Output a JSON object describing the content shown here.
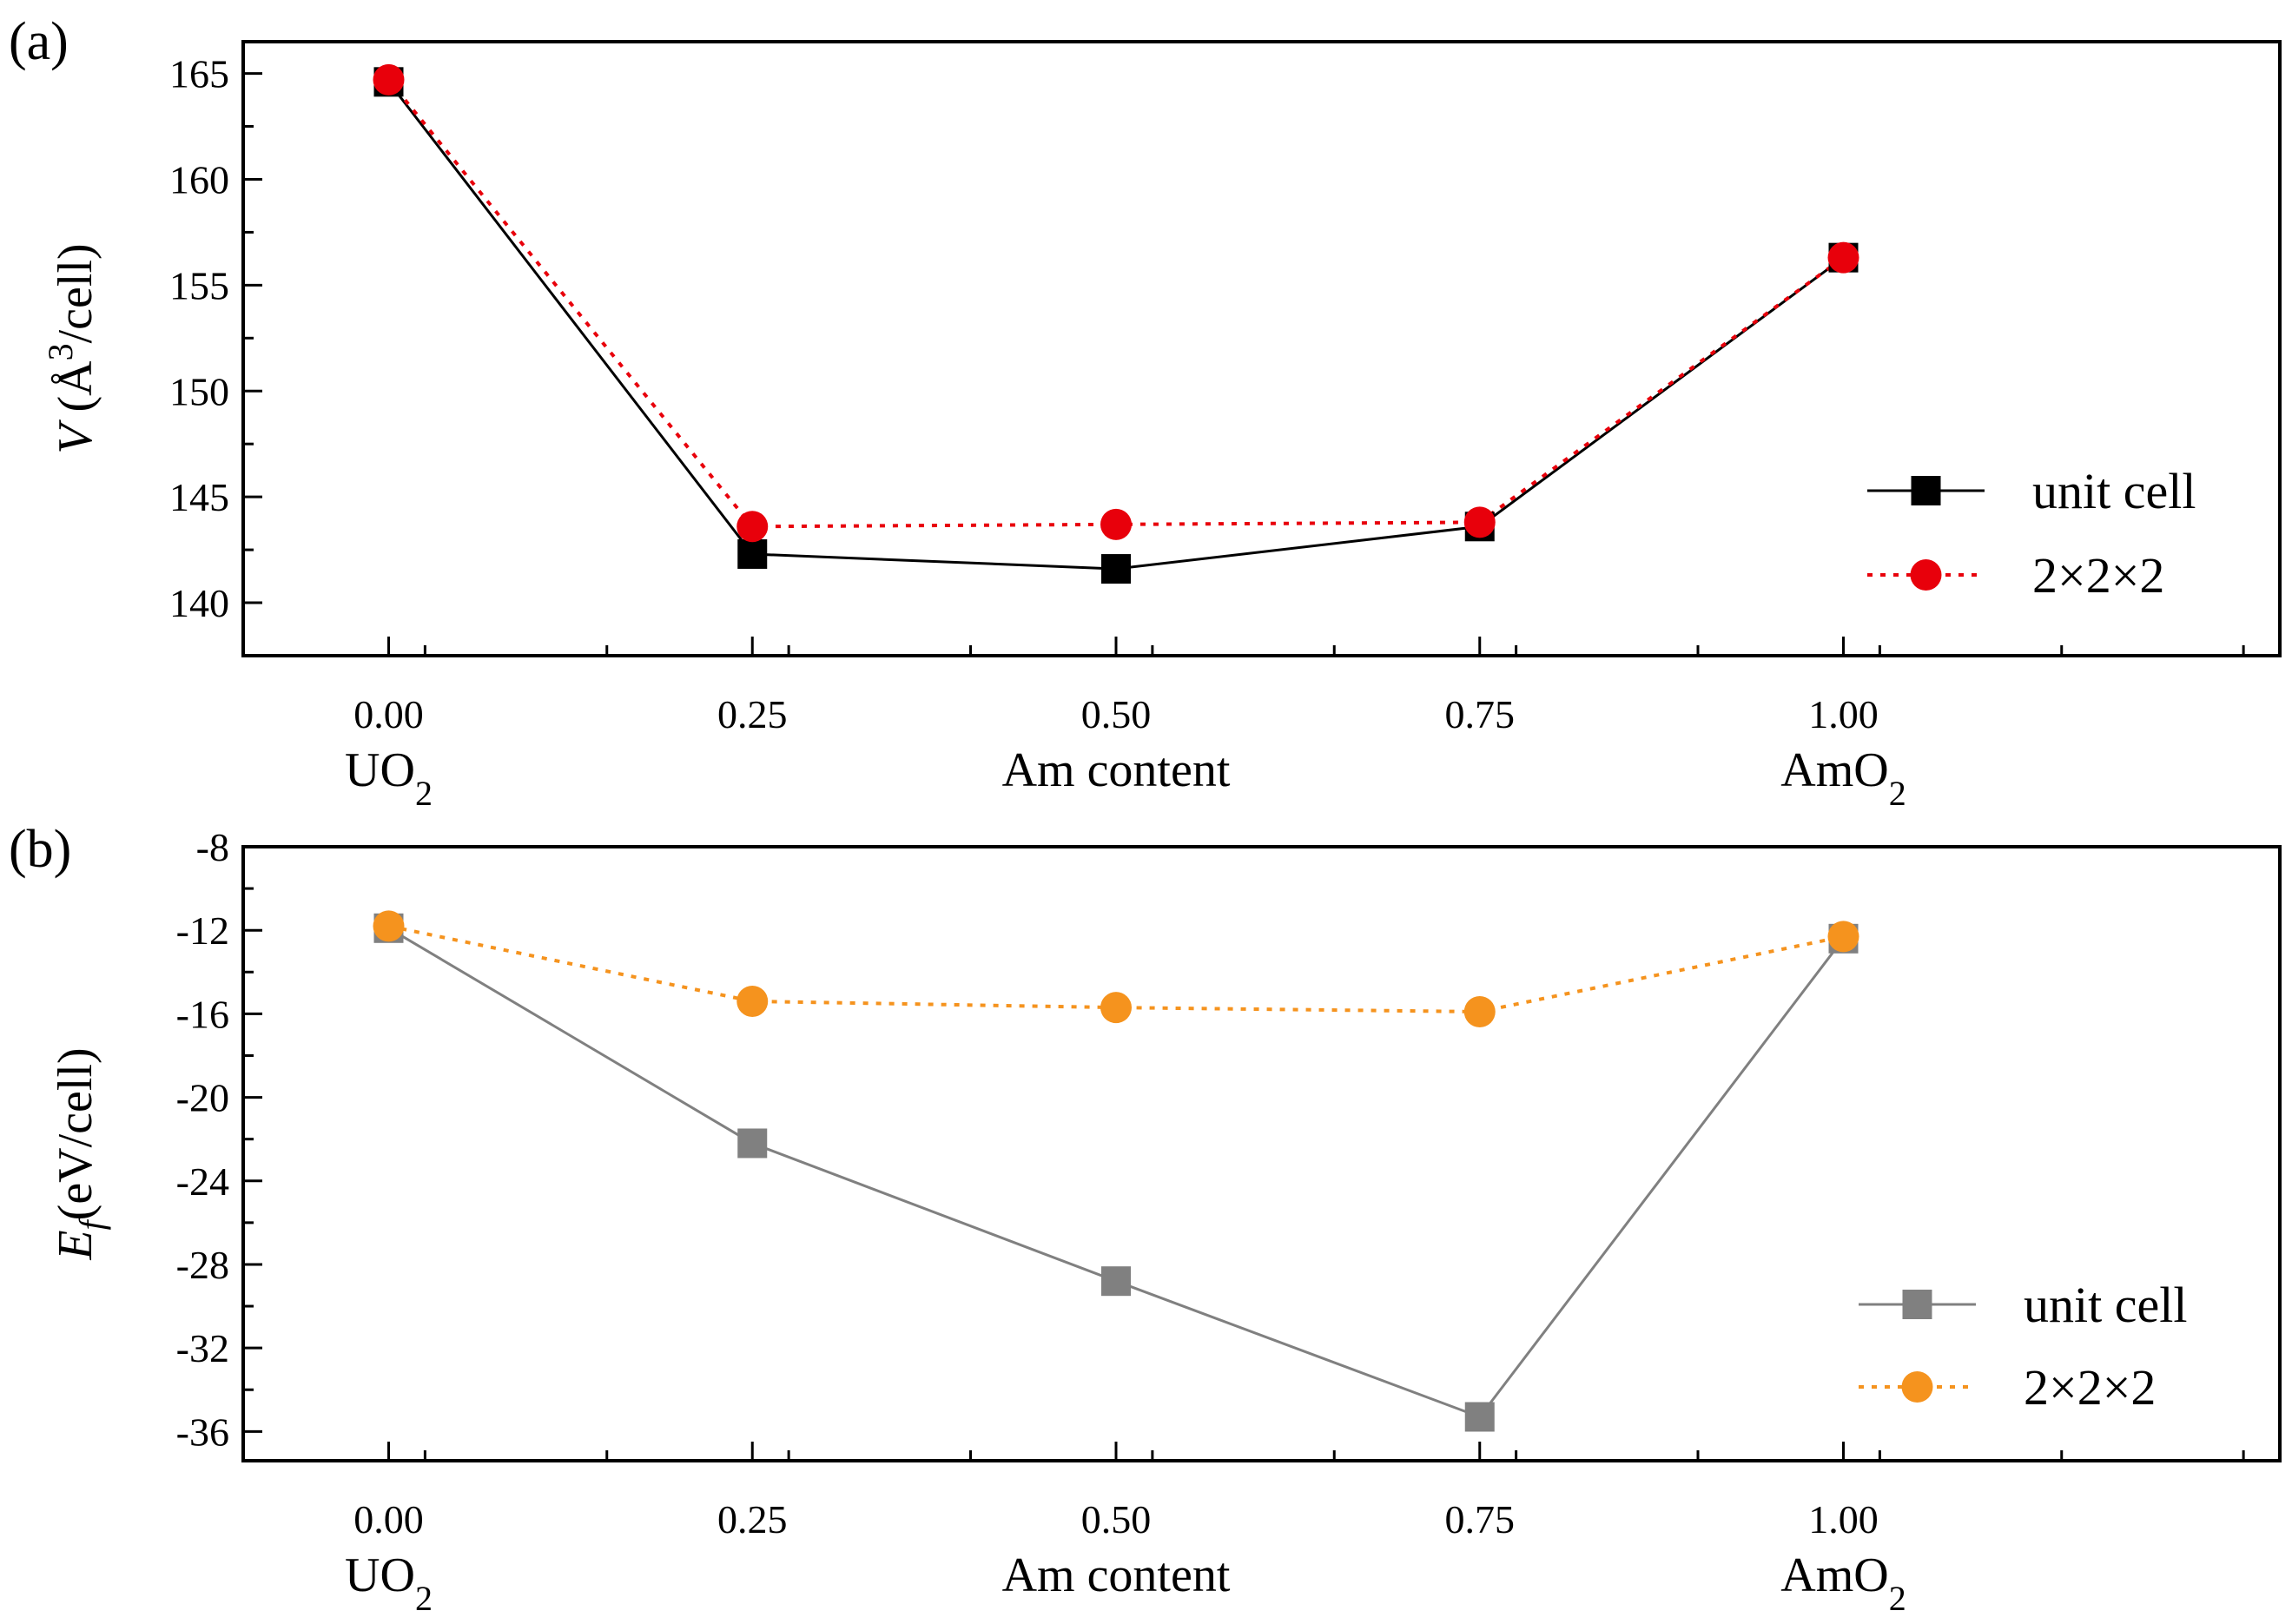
{
  "chart_data": [
    {
      "panel_label": "(a)",
      "type": "line",
      "ylabel_symbol": "V",
      "ylabel_unit": "(Å",
      "ylabel_sup": "3",
      "ylabel_tail": "/cell)",
      "xlabel": "Am content",
      "x": [
        0.0,
        0.25,
        0.5,
        0.75,
        1.0
      ],
      "x_tick_labels": [
        "0.00",
        "0.25",
        "0.50",
        "0.75",
        "1.00"
      ],
      "endpoint_labels": [
        {
          "x": 0.0,
          "main": "UO",
          "sub": "2"
        },
        {
          "x": 1.0,
          "main": "AmO",
          "sub": "2"
        }
      ],
      "xlim": [
        -0.1,
        1.3
      ],
      "ylim": [
        137.5,
        166.5
      ],
      "y_ticks": [
        140,
        145,
        150,
        155,
        160,
        165
      ],
      "y_tick_labels": [
        "140",
        "145",
        "150",
        "155",
        "160",
        "165"
      ],
      "y_minor_step": 2.5,
      "grid": false,
      "legend_position": "bottom-right",
      "series": [
        {
          "name": "unit cell",
          "color": "#000000",
          "line": "solid",
          "marker": "square",
          "values": [
            164.6,
            142.3,
            141.6,
            143.6,
            156.3
          ]
        },
        {
          "name": "2×2×2",
          "color": "#e8000b",
          "line": "dotted",
          "marker": "circle",
          "values": [
            164.7,
            143.6,
            143.7,
            143.8,
            156.3
          ]
        }
      ]
    },
    {
      "panel_label": "(b)",
      "type": "line",
      "ylabel_symbol": "E",
      "ylabel_sub": "f",
      "ylabel_unit": "(eV/cell)",
      "xlabel": "Am content",
      "x": [
        0.0,
        0.25,
        0.5,
        0.75,
        1.0
      ],
      "x_tick_labels": [
        "0.00",
        "0.25",
        "0.50",
        "0.75",
        "1.00"
      ],
      "endpoint_labels": [
        {
          "x": 0.0,
          "main": "UO",
          "sub": "2"
        },
        {
          "x": 1.0,
          "main": "AmO",
          "sub": "2"
        }
      ],
      "xlim": [
        -0.1,
        1.3
      ],
      "ylim": [
        -37.4,
        -8.0
      ],
      "y_ticks": [
        -36,
        -32,
        -28,
        -24,
        -20,
        -16,
        -12,
        -8
      ],
      "y_tick_labels": [
        "-36",
        "-32",
        "-28",
        "-24",
        "-20",
        "-16",
        "-12",
        "-8"
      ],
      "y_minor_step": 2,
      "grid": false,
      "legend_position": "bottom-right",
      "series": [
        {
          "name": "unit cell",
          "color": "#808080",
          "line": "solid",
          "marker": "square",
          "values": [
            -11.9,
            -22.2,
            -28.8,
            -35.3,
            -12.4
          ]
        },
        {
          "name": "2×2×2",
          "color": "#f5931e",
          "line": "dotted",
          "marker": "circle",
          "values": [
            -11.8,
            -15.4,
            -15.7,
            -15.9,
            -12.3
          ]
        }
      ]
    }
  ]
}
